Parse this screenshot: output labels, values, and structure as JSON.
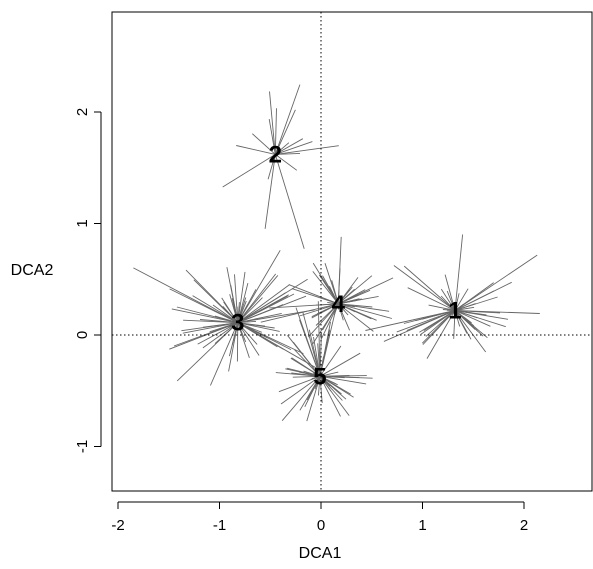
{
  "chart_data": {
    "type": "scatter",
    "subtype": "ordination spider plot (DCA)",
    "title": "",
    "xlabel": "DCA1",
    "ylabel": "DCA2",
    "xlim": [
      -2.1,
      2.65
    ],
    "ylim": [
      -1.4,
      2.85
    ],
    "xticks": [
      -2,
      -1,
      0,
      1,
      2
    ],
    "yticks": [
      -1,
      0,
      1,
      2
    ],
    "xtick_labels": [
      "-2",
      "-1",
      "0",
      "1",
      "2"
    ],
    "ytick_labels": [
      "-1",
      "0",
      "1",
      "2"
    ],
    "reference_lines": {
      "x": 0,
      "y": 0,
      "style": "dotted"
    },
    "grid": false,
    "legend": "none",
    "colors": {
      "spider": "#666666",
      "axis": "#000000",
      "reference": "#000000"
    },
    "groups": [
      {
        "label": "1",
        "centroid": [
          1.32,
          0.22
        ],
        "spread": [
          0.35,
          0.25
        ],
        "n": 55,
        "seed": 11
      },
      {
        "label": "2",
        "centroid": [
          -0.45,
          1.62
        ],
        "spread": [
          0.28,
          0.45
        ],
        "n": 18,
        "seed": 22
      },
      {
        "label": "3",
        "centroid": [
          -0.82,
          0.11
        ],
        "spread": [
          0.35,
          0.25
        ],
        "n": 75,
        "seed": 33
      },
      {
        "label": "4",
        "centroid": [
          0.17,
          0.28
        ],
        "spread": [
          0.3,
          0.25
        ],
        "n": 55,
        "seed": 44
      },
      {
        "label": "5",
        "centroid": [
          -0.01,
          -0.37
        ],
        "spread": [
          0.25,
          0.28
        ],
        "n": 60,
        "seed": 55
      }
    ]
  }
}
